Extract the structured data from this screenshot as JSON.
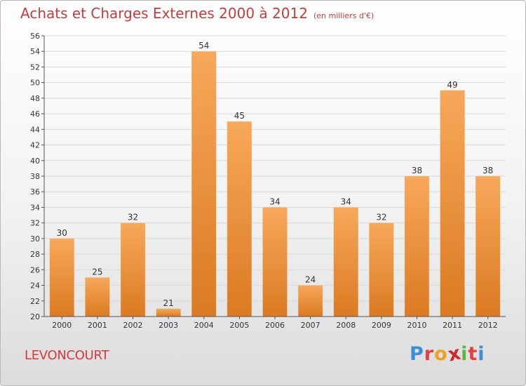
{
  "header": {
    "title": "Achats et Charges Externes 2000 à 2012",
    "subtitle": "(en milliers d'€)"
  },
  "footer": {
    "commune": "LEVONCOURT",
    "logo": [
      {
        "ch": "P",
        "color": "#3a8fd6"
      },
      {
        "ch": "r",
        "color": "#e63f3f"
      },
      {
        "ch": "o",
        "color": "#f0a01e"
      },
      {
        "ch": "x",
        "color": "#d0282a"
      },
      {
        "ch": "i",
        "color": "#5bb543"
      },
      {
        "ch": "t",
        "color": "#e63f3f"
      },
      {
        "ch": "i",
        "color": "#3a8fd6"
      }
    ]
  },
  "colors": {
    "title": "#c83b3b",
    "bar_light": "#f7a85a",
    "bar_dark": "#db7a22",
    "grid": "#d8d8d8",
    "axis": "#555555"
  },
  "chart_data": {
    "type": "bar",
    "categories": [
      "2000",
      "2001",
      "2002",
      "2003",
      "2004",
      "2005",
      "2006",
      "2007",
      "2008",
      "2009",
      "2010",
      "2011",
      "2012"
    ],
    "values": [
      30,
      25,
      32,
      21,
      54,
      45,
      34,
      24,
      34,
      32,
      38,
      49,
      38
    ],
    "ylim": [
      20,
      56
    ],
    "yticks": [
      20,
      22,
      24,
      26,
      28,
      30,
      32,
      34,
      36,
      38,
      40,
      42,
      44,
      46,
      48,
      50,
      52,
      54,
      56
    ],
    "grid": true,
    "title": "Achats et Charges Externes 2000 à 2012",
    "xlabel": "",
    "ylabel": ""
  }
}
